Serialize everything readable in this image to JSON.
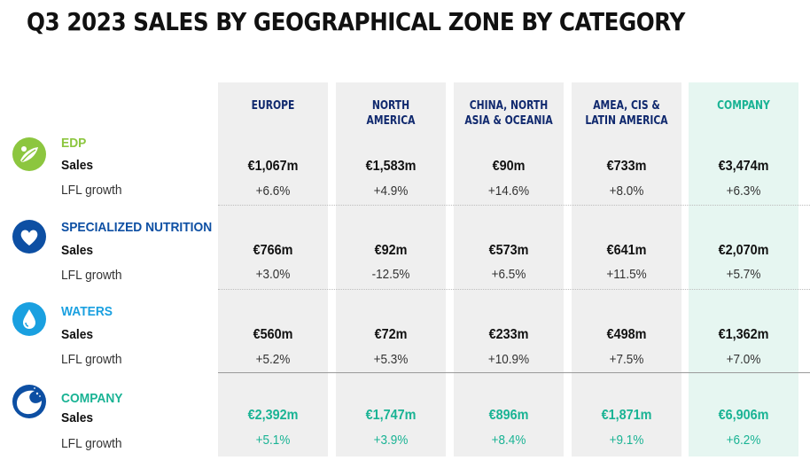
{
  "title": "Q3 2023 SALES BY GEOGRAPHICAL ZONE BY CATEGORY",
  "colors": {
    "header_navy": "#10296e",
    "company_green": "#19b394",
    "edp_green": "#8cc63f",
    "nutrition_blue": "#0d4fa3",
    "waters_blue": "#1aa0e0",
    "column_grey": "#efefef",
    "company_column": "#e6f6f1"
  },
  "columns": [
    {
      "label": "EUROPE"
    },
    {
      "label": "NORTH\nAMERICA"
    },
    {
      "label": "CHINA, NORTH\nASIA & OCEANIA"
    },
    {
      "label": "AMEA, CIS &\nLATIN AMERICA"
    },
    {
      "label": "COMPANY"
    }
  ],
  "row_labels": {
    "sales": "Sales",
    "lfl": "LFL growth"
  },
  "categories": [
    {
      "name": "EDP",
      "name_color": "#8cc63f",
      "icon": "edp-leaf-icon",
      "sales": [
        "€1,067m",
        "€1,583m",
        "€90m",
        "€733m",
        "€3,474m"
      ],
      "lfl": [
        "+6.6%",
        "+4.9%",
        "+14.6%",
        "+8.0%",
        "+6.3%"
      ]
    },
    {
      "name": "SPECIALIZED NUTRITION",
      "name_color": "#0d4fa3",
      "icon": "heart-icon",
      "sales": [
        "€766m",
        "€92m",
        "€573m",
        "€641m",
        "€2,070m"
      ],
      "lfl": [
        "+3.0%",
        "-12.5%",
        "+6.5%",
        "+11.5%",
        "+5.7%"
      ]
    },
    {
      "name": "WATERS",
      "name_color": "#1aa0e0",
      "icon": "water-drop-icon",
      "sales": [
        "€560m",
        "€72m",
        "€233m",
        "€498m",
        "€1,362m"
      ],
      "lfl": [
        "+5.2%",
        "+5.3%",
        "+10.9%",
        "+7.5%",
        "+7.0%"
      ]
    },
    {
      "name": "COMPANY",
      "name_color": "#19b394",
      "icon": "company-logo-icon",
      "sales": [
        "€2,392m",
        "€1,747m",
        "€896m",
        "€1,871m",
        "€6,906m"
      ],
      "lfl": [
        "+5.1%",
        "+3.9%",
        "+8.4%",
        "+9.1%",
        "+6.2%"
      ]
    }
  ]
}
